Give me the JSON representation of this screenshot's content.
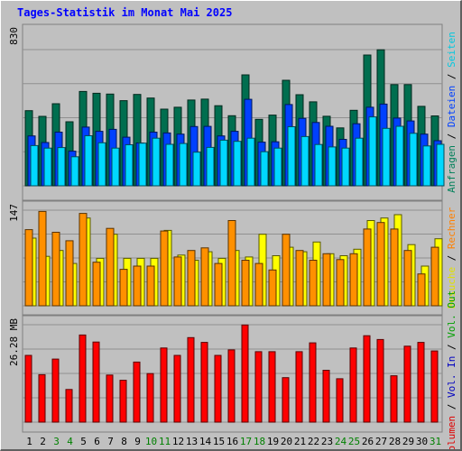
{
  "title": "Tages-Statistik im Monat Mai 2025",
  "chart_data": {
    "type": "bar",
    "categories": [
      "1",
      "2",
      "3",
      "4",
      "5",
      "6",
      "7",
      "8",
      "9",
      "10",
      "11",
      "12",
      "13",
      "14",
      "15",
      "16",
      "17",
      "18",
      "19",
      "20",
      "21",
      "22",
      "23",
      "24",
      "25",
      "26",
      "27",
      "28",
      "29",
      "30",
      "31"
    ],
    "weekend_days": [
      "3",
      "4",
      "10",
      "11",
      "17",
      "18",
      "24",
      "25",
      "31"
    ],
    "grid": true,
    "panels": [
      {
        "id": "requests",
        "max_label": "830",
        "ymax": 830,
        "right_label_parts": [
          {
            "text": "Anfragen",
            "color": "#00805a"
          },
          {
            "text": " / ",
            "color": "#000000"
          },
          {
            "text": "Dateien",
            "color": "#0040ff"
          },
          {
            "text": " / ",
            "color": "#000000"
          },
          {
            "text": "Seiten",
            "color": "#00c8e0"
          }
        ],
        "series": [
          {
            "name": "Anfragen",
            "color": "#006e4f",
            "values": [
              458,
              423,
              500,
              390,
              575,
              564,
              559,
              519,
              557,
              535,
              467,
              479,
              523,
              528,
              488,
              427,
              676,
              405,
              431,
              643,
              555,
              512,
              424,
              353,
              460,
              797,
              829,
              617,
              617,
              484,
              426
            ]
          },
          {
            "name": "Dateien",
            "color": "#0040ff",
            "values": [
              304,
              264,
              327,
              211,
              358,
              332,
              344,
              296,
              261,
              327,
              322,
              315,
              361,
              362,
              304,
              332,
              527,
              266,
              268,
              495,
              411,
              386,
              363,
              283,
              378,
              479,
              498,
              413,
              395,
              315,
              275
            ]
          },
          {
            "name": "Seiten",
            "color": "#00d8ff",
            "values": [
              245,
              230,
              233,
              177,
              305,
              262,
              230,
              250,
              260,
              290,
              253,
              258,
              205,
              234,
              278,
              271,
              290,
              208,
              230,
              360,
              300,
              252,
              237,
              230,
              290,
              420,
              350,
              363,
              320,
              243,
              253
            ]
          }
        ]
      },
      {
        "id": "visits",
        "max_label": "147",
        "ymax": 147,
        "right_label_parts": [
          {
            "text": "Besuche",
            "color": "#e0e000"
          },
          {
            "text": " / ",
            "color": "#000000"
          },
          {
            "text": "Rechner",
            "color": "#ff8000"
          }
        ],
        "series": [
          {
            "name": "Besuche",
            "color": "#ffff00",
            "values": [
              104,
              76,
              85,
              65,
              135,
              73,
              110,
              73,
              73,
              73,
              116,
              78,
              70,
              83,
              73,
              85,
              75,
              110,
              77,
              90,
              83,
              98,
              80,
              77,
              87,
              131,
              135,
              140,
              94,
              61,
              103
            ]
          },
          {
            "name": "Rechner",
            "color": "#ff9000",
            "values": [
              117,
              145,
              113,
              100,
              142,
              67,
              119,
              56,
              61,
              61,
              115,
              75,
              85,
              89,
              65,
              131,
              70,
              65,
              55,
              110,
              85,
              70,
              80,
              71,
              80,
              118,
              128,
              118,
              85,
              49,
              90
            ]
          }
        ]
      },
      {
        "id": "volume",
        "max_label": "26.28 MB",
        "ymax": 26.28,
        "right_label_parts": [
          {
            "text": "Volumen",
            "color": "#e00000"
          },
          {
            "text": " / ",
            "color": "#000000"
          },
          {
            "text": "Vol. In",
            "color": "#0000c0"
          },
          {
            "text": " / ",
            "color": "#000000"
          },
          {
            "text": "Vol. Out",
            "color": "#00a000"
          }
        ],
        "series": [
          {
            "name": "Volumen",
            "color": "#ff0000",
            "values": [
              18.0,
              12.8,
              17.0,
              8.8,
              23.5,
              21.6,
              12.7,
              11.3,
              16.2,
              13.1,
              20.0,
              18.0,
              22.8,
              21.5,
              18.0,
              19.5,
              26.2,
              19.0,
              19.0,
              12.0,
              19.0,
              21.4,
              14.0,
              11.7,
              20.0,
              23.3,
              22.3,
              12.5,
              20.5,
              21.5,
              19.2
            ]
          }
        ]
      }
    ]
  }
}
